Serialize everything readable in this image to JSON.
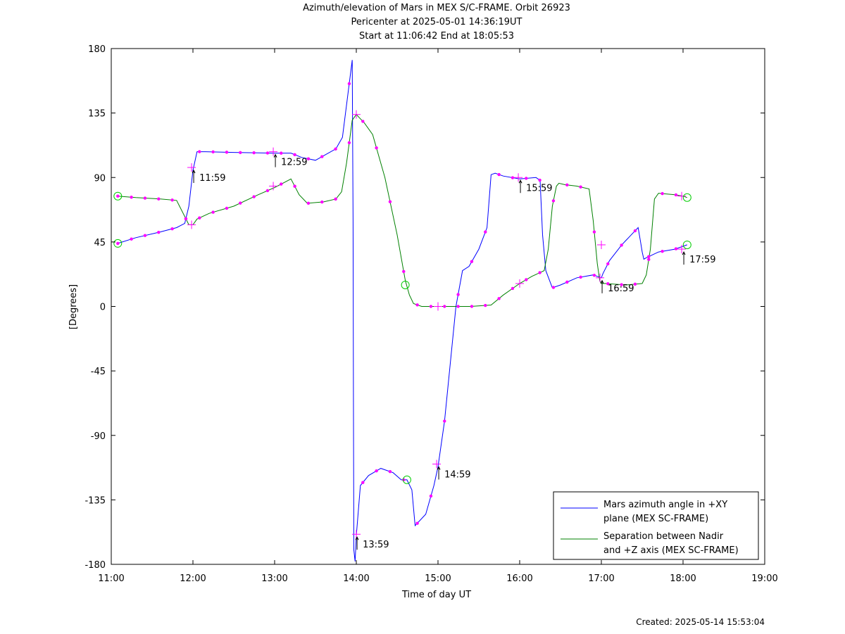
{
  "title": {
    "line1": "Azimuth/elevation of Mars in MEX S/C-FRAME.  Orbit 26923",
    "line2": "Pericenter at 2025-05-01 14:36:19UT",
    "line3": "Start at 11:06:42 End at 18:05:53"
  },
  "footer": "Created: 2025-05-14 15:53:04",
  "colors": {
    "azimuth": "#0000ff",
    "separation": "#008000",
    "marker": "#ff00ff",
    "axis": "#000000"
  },
  "chart_data": {
    "type": "line",
    "xlabel": "Time of day UT",
    "ylabel": "[Degrees]",
    "xlim": [
      11,
      19
    ],
    "ylim": [
      -180,
      180
    ],
    "x_ticks": [
      11,
      12,
      13,
      14,
      15,
      16,
      17,
      18,
      19
    ],
    "x_tick_labels": [
      "11:00",
      "12:00",
      "13:00",
      "14:00",
      "15:00",
      "16:00",
      "17:00",
      "18:00",
      "19:00"
    ],
    "y_ticks": [
      180,
      135,
      90,
      45,
      0,
      -45,
      -90,
      -135,
      -180
    ],
    "y_tick_labels": [
      "180",
      "135",
      "90",
      "45",
      "0",
      "-45",
      "-90",
      "-135",
      "-180"
    ],
    "grid": false,
    "legend_position": "bottom-right",
    "series": [
      {
        "name": "Mars azimuth angle in +XY plane (MEX SC-FRAME)",
        "legend_lines": [
          "Mars azimuth angle in +XY",
          "plane (MEX SC-FRAME)"
        ],
        "color": "#0000ff",
        "x": [
          11.08,
          11.3,
          11.6,
          11.8,
          11.9,
          11.95,
          12.0,
          12.05,
          12.15,
          12.5,
          13.0,
          13.2,
          13.33,
          13.5,
          13.75,
          13.83,
          13.95,
          13.96,
          13.965,
          13.97,
          13.985,
          14.0,
          14.05,
          14.15,
          14.3,
          14.45,
          14.55,
          14.62,
          14.68,
          14.72,
          14.85,
          14.95,
          15.0,
          15.08,
          15.15,
          15.22,
          15.3,
          15.38,
          15.5,
          15.6,
          15.65,
          15.7,
          15.8,
          16.0,
          16.2,
          16.25,
          16.28,
          16.32,
          16.4,
          16.5,
          16.7,
          16.9,
          17.0,
          17.02,
          17.1,
          17.25,
          17.35,
          17.45,
          17.48,
          17.5,
          17.52,
          17.55,
          17.7,
          17.9,
          18.0,
          18.05
        ],
        "y": [
          44,
          48,
          52,
          55,
          58,
          70,
          95,
          108,
          108,
          107.5,
          107,
          107,
          104,
          102,
          110,
          118,
          172,
          60,
          -60,
          -170,
          -178,
          -160,
          -125,
          -118,
          -113,
          -116,
          -121,
          -121,
          -128,
          -153,
          -145,
          -125,
          -112,
          -80,
          -40,
          0,
          25,
          28,
          40,
          55,
          92,
          93,
          91,
          89,
          90,
          88,
          50,
          25,
          13,
          15,
          20,
          22,
          20,
          23,
          32,
          43,
          49,
          55,
          45,
          38,
          33,
          34,
          38,
          40,
          42,
          43
        ]
      },
      {
        "name": "Separation between Nadir and +Z axis (MEX SC-FRAME)",
        "legend_lines": [
          "Separation between Nadir",
          "and +Z axis (MEX SC-FRAME)"
        ],
        "color": "#008000",
        "x": [
          11.08,
          11.3,
          11.6,
          11.8,
          11.88,
          11.95,
          12.0,
          12.05,
          12.2,
          12.5,
          12.8,
          13.0,
          13.1,
          13.2,
          13.3,
          13.4,
          13.6,
          13.75,
          13.82,
          13.88,
          13.95,
          14.0,
          14.1,
          14.2,
          14.35,
          14.5,
          14.6,
          14.65,
          14.7,
          14.8,
          15.0,
          15.2,
          15.4,
          15.65,
          15.8,
          16.0,
          16.15,
          16.3,
          16.35,
          16.4,
          16.45,
          16.48,
          16.55,
          16.7,
          16.85,
          16.9,
          16.95,
          16.98,
          17.0,
          17.05,
          17.3,
          17.5,
          17.55,
          17.6,
          17.65,
          17.7,
          17.9,
          18.0,
          18.05
        ],
        "y": [
          77,
          76,
          75,
          74,
          65,
          57,
          57,
          61,
          65,
          70,
          78,
          83,
          86,
          89,
          78,
          72,
          73,
          75,
          80,
          100,
          130,
          134,
          128,
          120,
          90,
          50,
          18,
          8,
          2,
          0,
          0,
          0,
          0,
          1,
          8,
          16,
          21,
          25,
          40,
          70,
          84,
          86,
          85,
          84,
          82,
          60,
          30,
          18,
          16,
          16,
          15,
          16,
          22,
          40,
          75,
          79,
          78,
          77,
          76
        ]
      }
    ],
    "annotations": [
      {
        "label": "11:59",
        "x": 11.9833,
        "y": 97
      },
      {
        "label": "12:59",
        "x": 12.9833,
        "y": 108
      },
      {
        "label": "13:59",
        "x": 13.9833,
        "y": -159
      },
      {
        "label": "14:59",
        "x": 14.9833,
        "y": -110
      },
      {
        "label": "15:59",
        "x": 15.9833,
        "y": 90
      },
      {
        "label": "16:59",
        "x": 16.9833,
        "y": 20
      },
      {
        "label": "17:59",
        "x": 17.9833,
        "y": 40
      }
    ],
    "cross_markers": [
      {
        "x": 11.9833,
        "y": 97
      },
      {
        "x": 11.9833,
        "y": 57
      },
      {
        "x": 12.9833,
        "y": 108
      },
      {
        "x": 12.9833,
        "y": 84
      },
      {
        "x": 14.0,
        "y": -159
      },
      {
        "x": 14.0,
        "y": 134
      },
      {
        "x": 14.9833,
        "y": -110
      },
      {
        "x": 15.0,
        "y": 0
      },
      {
        "x": 15.9833,
        "y": 90
      },
      {
        "x": 16.0,
        "y": 16
      },
      {
        "x": 16.9833,
        "y": 20
      },
      {
        "x": 17.0,
        "y": 43
      },
      {
        "x": 17.9833,
        "y": 40
      },
      {
        "x": 17.9833,
        "y": 77
      }
    ],
    "circle_markers": [
      {
        "x": 11.08,
        "y": 44
      },
      {
        "x": 11.08,
        "y": 77
      },
      {
        "x": 14.62,
        "y": -121
      },
      {
        "x": 14.6,
        "y": 15
      },
      {
        "x": 18.05,
        "y": 43
      },
      {
        "x": 18.05,
        "y": 76
      }
    ]
  }
}
